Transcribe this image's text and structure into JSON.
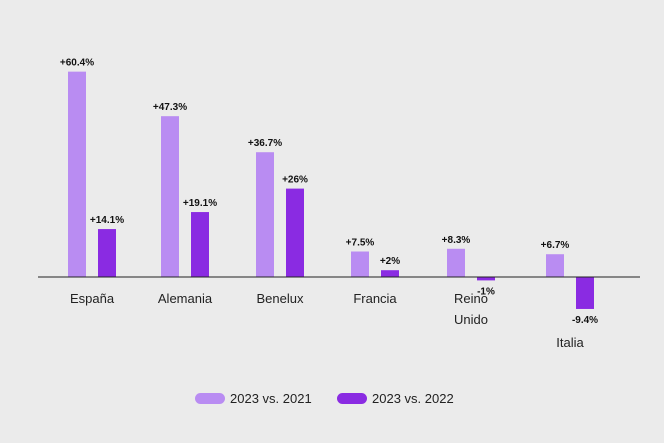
{
  "chart_data": {
    "type": "bar",
    "categories": [
      "España",
      "Alemania",
      "Benelux",
      "Francia",
      "Reino Unido",
      "Italia"
    ],
    "series": [
      {
        "name": "2023 vs. 2021",
        "color": "#b98cf2",
        "values": [
          60.4,
          47.3,
          36.7,
          7.5,
          8.3,
          6.7
        ],
        "labels": [
          "+60.4%",
          "+47.3%",
          "+36.7%",
          "+7.5%",
          "+8.3%",
          "+6.7%"
        ]
      },
      {
        "name": "2023 vs. 2022",
        "color": "#8a2be2",
        "values": [
          14.1,
          19.1,
          26,
          2,
          -1,
          -9.4
        ],
        "labels": [
          "+14.1%",
          "+19.1%",
          "+26%",
          "+2%",
          "-1%",
          "-9.4%"
        ]
      }
    ],
    "ylim": [
      -10,
      62
    ],
    "legend": "bottom-center",
    "grid": false
  }
}
